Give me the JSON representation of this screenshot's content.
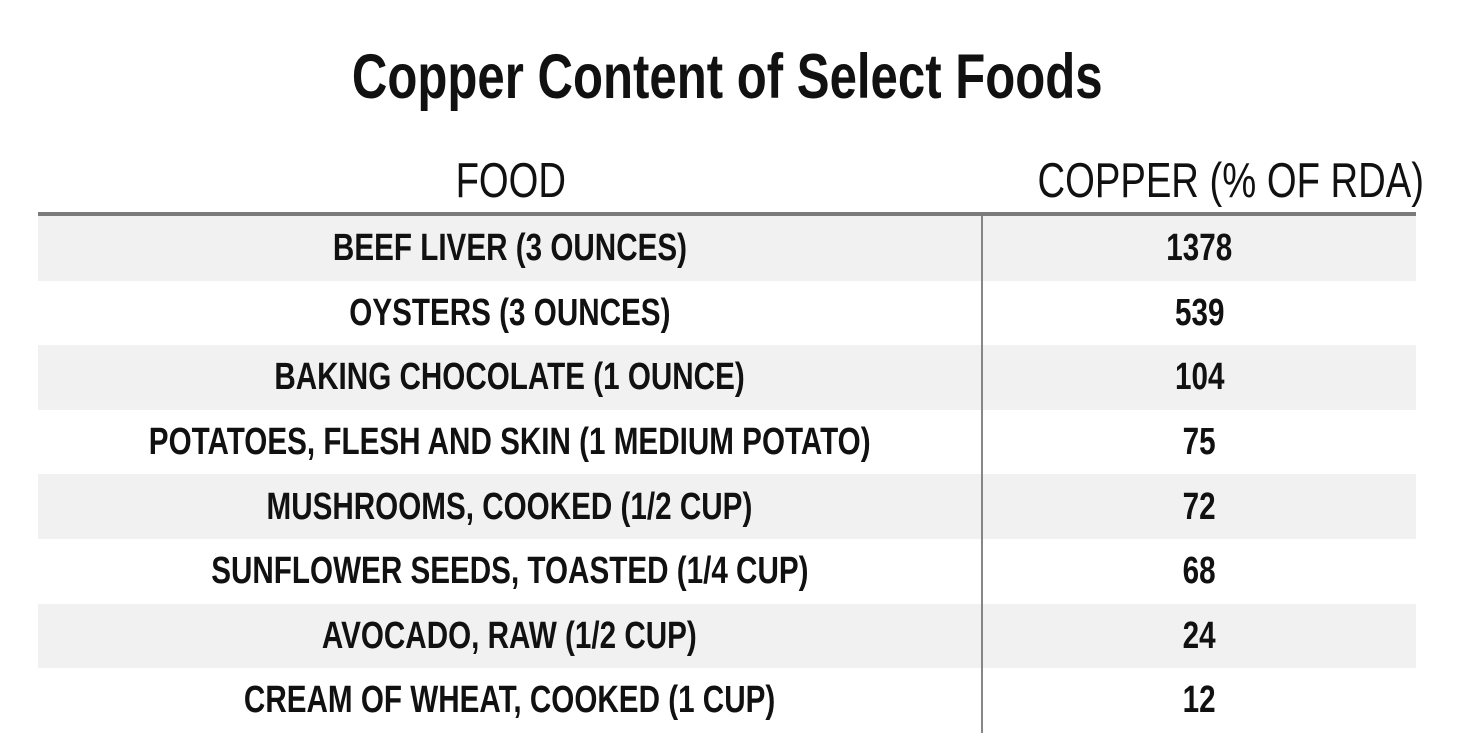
{
  "title": "Copper Content of Select Foods",
  "columns": {
    "food": "FOOD",
    "copper": "COPPER (% OF RDA)"
  },
  "rows": [
    {
      "food": "BEEF LIVER (3 OUNCES)",
      "copper": "1378"
    },
    {
      "food": "OYSTERS (3 OUNCES)",
      "copper": "539"
    },
    {
      "food": "BAKING CHOCOLATE (1 OUNCE)",
      "copper": "104"
    },
    {
      "food": "POTATOES, FLESH AND SKIN (1 MEDIUM POTATO)",
      "copper": "75"
    },
    {
      "food": "MUSHROOMS, COOKED (1/2 CUP)",
      "copper": "72"
    },
    {
      "food": "SUNFLOWER SEEDS, TOASTED (1/4 CUP)",
      "copper": "68"
    },
    {
      "food": "AVOCADO, RAW (1/2 CUP)",
      "copper": "24"
    },
    {
      "food": "CREAM OF WHEAT, COOKED (1 CUP)",
      "copper": "12"
    }
  ],
  "colors": {
    "stripe": "#f0f1f0",
    "header_rule": "#7b7b7b",
    "column_divider": "#868686",
    "text": "#111111",
    "background": "#ffffff"
  },
  "chart_data": {
    "type": "table",
    "title": "Copper Content of Select Foods",
    "columns": [
      "FOOD",
      "COPPER (% OF RDA)"
    ],
    "rows": [
      [
        "BEEF LIVER (3 OUNCES)",
        1378
      ],
      [
        "OYSTERS (3 OUNCES)",
        539
      ],
      [
        "BAKING CHOCOLATE (1 OUNCE)",
        104
      ],
      [
        "POTATOES, FLESH AND SKIN (1 MEDIUM POTATO)",
        75
      ],
      [
        "MUSHROOMS, COOKED (1/2 CUP)",
        72
      ],
      [
        "SUNFLOWER SEEDS, TOASTED (1/4 CUP)",
        68
      ],
      [
        "AVOCADO, RAW (1/2 CUP)",
        24
      ],
      [
        "CREAM OF WHEAT, COOKED (1 CUP)",
        12
      ]
    ],
    "layout_hints": {
      "striped_rows": "odd rows (1st, 3rd, 5th, 7th) shaded light gray",
      "alignment": "both columns center-aligned",
      "header_rule": true,
      "column_divider_between_columns": true
    }
  }
}
